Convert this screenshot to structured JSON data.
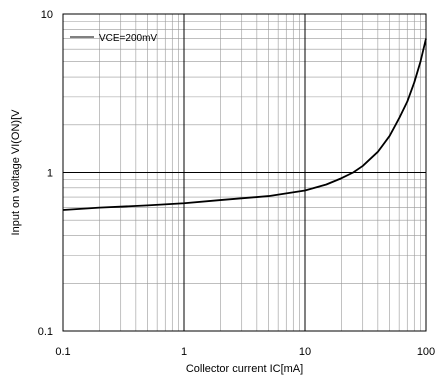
{
  "chart_data": {
    "type": "line",
    "xlabel": "Collector current  IC[mA]",
    "ylabel": "Input on voltage  VI(ON)[V",
    "x_scale": "log",
    "y_scale": "log",
    "xlim": [
      0.1,
      100
    ],
    "ylim": [
      0.1,
      10
    ],
    "x_ticks": [
      "0.1",
      "1",
      "10",
      "100"
    ],
    "y_ticks": [
      "0.1",
      "1",
      "10"
    ],
    "grid": true,
    "legend_position": "top-left",
    "series": [
      {
        "name": "VCE=200mV",
        "color": "#000000",
        "x": [
          0.1,
          0.2,
          0.5,
          1,
          2,
          5,
          10,
          15,
          20,
          25,
          30,
          40,
          50,
          60,
          70,
          80,
          90,
          100
        ],
        "y": [
          0.58,
          0.6,
          0.62,
          0.64,
          0.67,
          0.71,
          0.77,
          0.84,
          0.92,
          1.0,
          1.1,
          1.35,
          1.7,
          2.2,
          2.8,
          3.7,
          5.0,
          7.0
        ]
      }
    ]
  }
}
